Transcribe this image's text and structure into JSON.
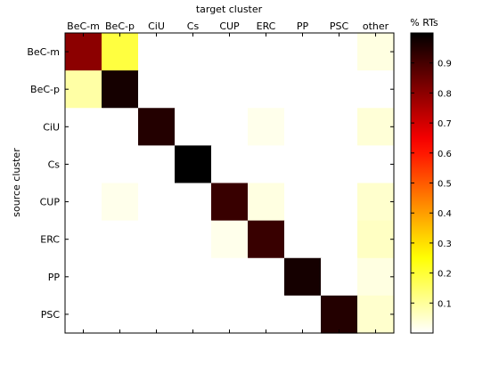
{
  "chart_data": {
    "type": "heatmap",
    "title": "",
    "xlabel": "target cluster",
    "ylabel": "source cluster",
    "x_categories": [
      "BeC-m",
      "BeC-p",
      "CiU",
      "Cs",
      "CUP",
      "ERC",
      "PP",
      "PSC",
      "other"
    ],
    "y_categories": [
      "BeC-m",
      "BeC-p",
      "CiU",
      "Cs",
      "CUP",
      "ERC",
      "PP",
      "PSC"
    ],
    "values": [
      [
        0.8,
        0.19,
        0.0,
        0.0,
        0.0,
        0.0,
        0.0,
        0.0,
        0.03
      ],
      [
        0.09,
        0.97,
        0.0,
        0.0,
        0.0,
        0.0,
        0.0,
        0.0,
        0.0
      ],
      [
        0.0,
        0.0,
        0.95,
        0.0,
        0.0,
        0.02,
        0.0,
        0.0,
        0.04
      ],
      [
        0.0,
        0.0,
        0.0,
        1.0,
        0.0,
        0.0,
        0.0,
        0.0,
        0.0
      ],
      [
        0.0,
        0.02,
        0.0,
        0.0,
        0.92,
        0.03,
        0.0,
        0.0,
        0.05
      ],
      [
        0.0,
        0.0,
        0.0,
        0.0,
        0.02,
        0.92,
        0.0,
        0.0,
        0.06
      ],
      [
        0.0,
        0.0,
        0.0,
        0.0,
        0.0,
        0.0,
        0.97,
        0.0,
        0.03
      ],
      [
        0.0,
        0.0,
        0.0,
        0.0,
        0.0,
        0.0,
        0.0,
        0.95,
        0.05
      ]
    ],
    "colormap": "hot-reversed",
    "colorbar": {
      "label": "% RTs",
      "range": [
        0,
        1
      ],
      "ticks": [
        0.1,
        0.2,
        0.3,
        0.4,
        0.5,
        0.6,
        0.7,
        0.8,
        0.9
      ],
      "tick_labels": [
        "0.1",
        "0.2",
        "0.3",
        "0.4",
        "0.5",
        "0.6",
        "0.7",
        "0.8",
        "0.9"
      ]
    },
    "grid": false,
    "legend": "none"
  }
}
